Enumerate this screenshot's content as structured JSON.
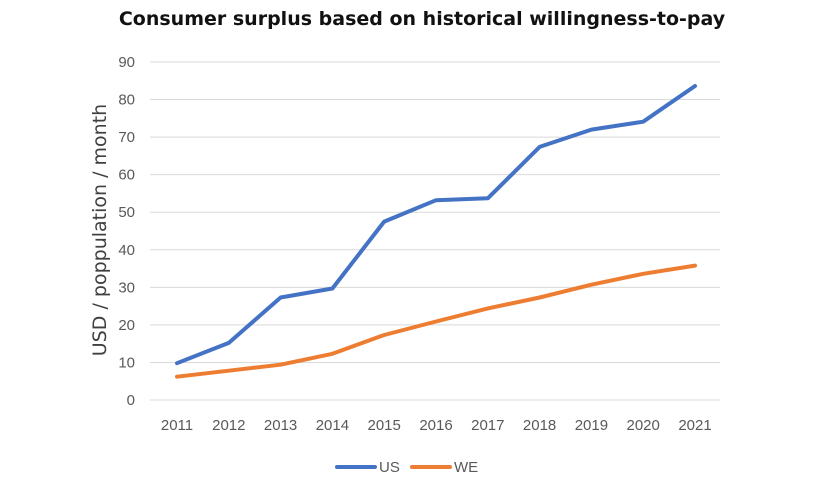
{
  "chart_data": {
    "type": "line",
    "title": "Consumer surplus based on historical willingness-to-pay",
    "xlabel": "",
    "ylabel": "USD / poppulation / month",
    "categories": [
      "2011",
      "2012",
      "2013",
      "2014",
      "2015",
      "2016",
      "2017",
      "2018",
      "2019",
      "2020",
      "2021"
    ],
    "series": [
      {
        "name": "US",
        "color": "#4472C4",
        "values": [
          9.8,
          15.2,
          27.3,
          29.7,
          47.5,
          53.2,
          53.7,
          67.4,
          72.0,
          74.1,
          83.6
        ]
      },
      {
        "name": "WE",
        "color": "#ED7D31",
        "values": [
          6.2,
          7.8,
          9.4,
          12.3,
          17.3,
          20.9,
          24.4,
          27.3,
          30.7,
          33.6,
          35.8
        ]
      }
    ],
    "ylim": [
      0,
      90
    ],
    "yticks": [
      0,
      10,
      20,
      30,
      40,
      50,
      60,
      70,
      80,
      90
    ],
    "grid": true,
    "gridColor": "#D9D9D9",
    "legend_position": "bottom"
  }
}
